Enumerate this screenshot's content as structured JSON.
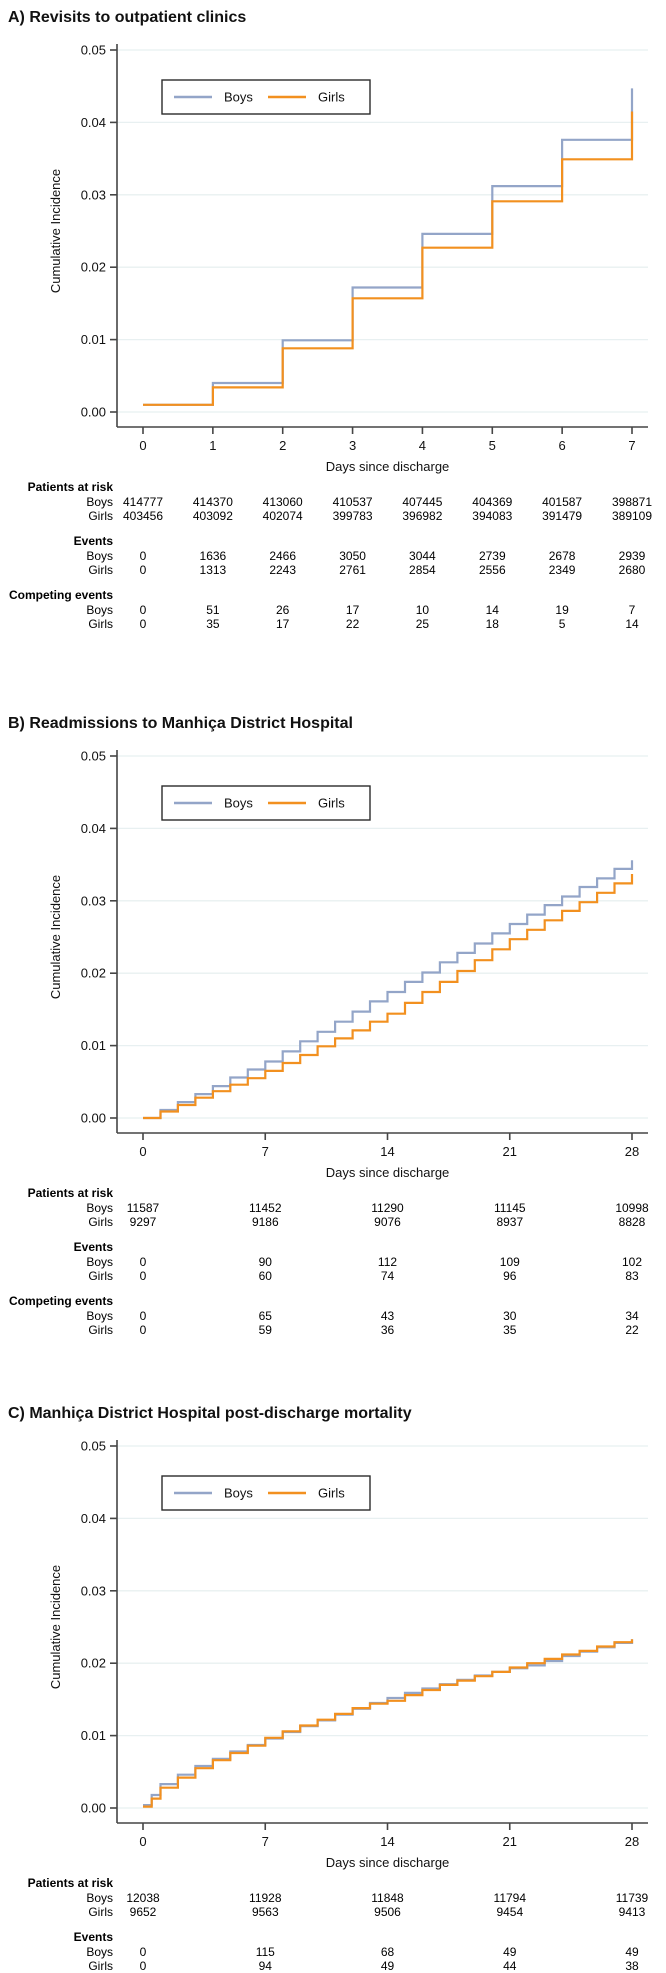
{
  "colors": {
    "boys_line": "#93a5c8",
    "girls_line": "#f2901f",
    "gridline": "#e8f0f1",
    "axis": "#454545",
    "legend_border": "#2b2b2b",
    "text": "#111111"
  },
  "panels": [
    {
      "title": "A) Revisits to outpatient clinics",
      "ylabel": "Cumulative Incidence",
      "xlabel": "Days since discharge",
      "legend": [
        {
          "label": "Boys",
          "color_key": "boys_line"
        },
        {
          "label": "Girls",
          "color_key": "girls_line"
        }
      ],
      "chart_data": {
        "type": "line",
        "step": true,
        "title": "A) Revisits to outpatient clinics",
        "xlabel": "Days since discharge",
        "ylabel": "Cumulative Incidence",
        "xlim": [
          0,
          7
        ],
        "ylim": [
          0,
          0.05
        ],
        "x_ticks": [
          0,
          1,
          2,
          3,
          4,
          5,
          6,
          7
        ],
        "y_ticks": [
          0.0,
          0.01,
          0.02,
          0.03,
          0.04,
          0.05
        ],
        "grid": true,
        "legend_position": "top-left-inside",
        "series": [
          {
            "name": "Boys",
            "x": [
              0,
              1,
              2,
              3,
              4,
              5,
              6,
              7
            ],
            "y": [
              0.001,
              0.004,
              0.0099,
              0.0172,
              0.0246,
              0.0312,
              0.0376,
              0.0447
            ]
          },
          {
            "name": "Girls",
            "x": [
              0,
              1,
              2,
              3,
              4,
              5,
              6,
              7
            ],
            "y": [
              0.001,
              0.0034,
              0.0088,
              0.0157,
              0.0227,
              0.0291,
              0.0349,
              0.0415
            ]
          }
        ]
      },
      "risk_table": {
        "columns": [
          0,
          1,
          2,
          3,
          4,
          5,
          6,
          7
        ],
        "sections": [
          {
            "label": "Patients at risk",
            "rows": [
              {
                "label": "Boys",
                "values": [
                  "414777",
                  "414370",
                  "413060",
                  "410537",
                  "407445",
                  "404369",
                  "401587",
                  "398871"
                ]
              },
              {
                "label": "Girls",
                "values": [
                  "403456",
                  "403092",
                  "402074",
                  "399783",
                  "396982",
                  "394083",
                  "391479",
                  "389109"
                ]
              }
            ]
          },
          {
            "label": "Events",
            "rows": [
              {
                "label": "Boys",
                "values": [
                  "0",
                  "1636",
                  "2466",
                  "3050",
                  "3044",
                  "2739",
                  "2678",
                  "2939"
                ]
              },
              {
                "label": "Girls",
                "values": [
                  "0",
                  "1313",
                  "2243",
                  "2761",
                  "2854",
                  "2556",
                  "2349",
                  "2680"
                ]
              }
            ]
          },
          {
            "label": "Competing events",
            "rows": [
              {
                "label": "Boys",
                "values": [
                  "0",
                  "51",
                  "26",
                  "17",
                  "10",
                  "14",
                  "19",
                  "7"
                ]
              },
              {
                "label": "Girls",
                "values": [
                  "0",
                  "35",
                  "17",
                  "22",
                  "25",
                  "18",
                  "5",
                  "14"
                ]
              }
            ]
          }
        ]
      }
    },
    {
      "title": "B) Readmissions to Manhiça District Hospital",
      "ylabel": "Cumulative Incidence",
      "xlabel": "Days since discharge",
      "legend": [
        {
          "label": "Boys",
          "color_key": "boys_line"
        },
        {
          "label": "Girls",
          "color_key": "girls_line"
        }
      ],
      "chart_data": {
        "type": "line",
        "step": true,
        "title": "B) Readmissions to Manhiça District Hospital",
        "xlabel": "Days since discharge",
        "ylabel": "Cumulative Incidence",
        "xlim": [
          0,
          28
        ],
        "ylim": [
          0,
          0.05
        ],
        "x_ticks": [
          0,
          7,
          14,
          21,
          28
        ],
        "y_ticks": [
          0.0,
          0.01,
          0.02,
          0.03,
          0.04,
          0.05
        ],
        "grid": true,
        "legend_position": "top-left-inside",
        "series": [
          {
            "name": "Boys",
            "x": [
              0,
              1,
              2,
              3,
              4,
              5,
              6,
              7,
              8,
              9,
              10,
              11,
              12,
              13,
              14,
              15,
              16,
              17,
              18,
              19,
              20,
              21,
              22,
              23,
              24,
              25,
              26,
              27,
              28
            ],
            "y": [
              0,
              0.0011,
              0.0022,
              0.0033,
              0.0044,
              0.0056,
              0.0067,
              0.0078,
              0.0092,
              0.0106,
              0.0119,
              0.0133,
              0.0147,
              0.0161,
              0.0174,
              0.0188,
              0.0201,
              0.0215,
              0.0228,
              0.0241,
              0.0255,
              0.0268,
              0.0281,
              0.0294,
              0.0306,
              0.0319,
              0.0331,
              0.0344,
              0.0356
            ]
          },
          {
            "name": "Girls",
            "x": [
              0,
              1,
              2,
              3,
              4,
              5,
              6,
              7,
              8,
              9,
              10,
              11,
              12,
              13,
              14,
              15,
              16,
              17,
              18,
              19,
              20,
              21,
              22,
              23,
              24,
              25,
              26,
              27,
              28
            ],
            "y": [
              0,
              0.0009,
              0.0018,
              0.0028,
              0.0037,
              0.0046,
              0.0055,
              0.0065,
              0.0076,
              0.0087,
              0.0099,
              0.011,
              0.0121,
              0.0133,
              0.0144,
              0.0159,
              0.0174,
              0.0188,
              0.0203,
              0.0218,
              0.0233,
              0.0247,
              0.026,
              0.0273,
              0.0286,
              0.0298,
              0.0311,
              0.0324,
              0.0337
            ]
          }
        ]
      },
      "risk_table": {
        "columns": [
          0,
          7,
          14,
          21,
          28
        ],
        "sections": [
          {
            "label": "Patients at risk",
            "rows": [
              {
                "label": "Boys",
                "values": [
                  "11587",
                  "11452",
                  "11290",
                  "11145",
                  "10998"
                ]
              },
              {
                "label": "Girls",
                "values": [
                  "9297",
                  "9186",
                  "9076",
                  "8937",
                  "8828"
                ]
              }
            ]
          },
          {
            "label": "Events",
            "rows": [
              {
                "label": "Boys",
                "values": [
                  "0",
                  "90",
                  "112",
                  "109",
                  "102"
                ]
              },
              {
                "label": "Girls",
                "values": [
                  "0",
                  "60",
                  "74",
                  "96",
                  "83"
                ]
              }
            ]
          },
          {
            "label": "Competing events",
            "rows": [
              {
                "label": "Boys",
                "values": [
                  "0",
                  "65",
                  "43",
                  "30",
                  "34"
                ]
              },
              {
                "label": "Girls",
                "values": [
                  "0",
                  "59",
                  "36",
                  "35",
                  "22"
                ]
              }
            ]
          }
        ]
      }
    },
    {
      "title": "C) Manhiça District Hospital post-discharge mortality",
      "ylabel": "Cumulative Incidence",
      "xlabel": "Days since discharge",
      "legend": [
        {
          "label": "Boys",
          "color_key": "boys_line"
        },
        {
          "label": "Girls",
          "color_key": "girls_line"
        }
      ],
      "chart_data": {
        "type": "line",
        "step": true,
        "title": "C) Manhiça District Hospital post-discharge mortality",
        "xlabel": "Days since discharge",
        "ylabel": "Cumulative Incidence",
        "xlim": [
          0,
          28
        ],
        "ylim": [
          0,
          0.05
        ],
        "x_ticks": [
          0,
          7,
          14,
          21,
          28
        ],
        "y_ticks": [
          0.0,
          0.01,
          0.02,
          0.03,
          0.04,
          0.05
        ],
        "grid": true,
        "legend_position": "top-left-inside",
        "series": [
          {
            "name": "Boys",
            "x": [
              0,
              0.5,
              1,
              2,
              3,
              4,
              5,
              6,
              7,
              8,
              9,
              10,
              11,
              12,
              13,
              14,
              15,
              16,
              17,
              18,
              19,
              20,
              21,
              22,
              23,
              24,
              25,
              26,
              27,
              28
            ],
            "y": [
              0.0004,
              0.0018,
              0.0033,
              0.0046,
              0.0058,
              0.0068,
              0.0078,
              0.0087,
              0.0096,
              0.0105,
              0.0113,
              0.0121,
              0.0129,
              0.0137,
              0.0145,
              0.0152,
              0.0159,
              0.0165,
              0.0171,
              0.0177,
              0.0183,
              0.0188,
              0.0193,
              0.0197,
              0.0203,
              0.021,
              0.0216,
              0.0222,
              0.0228,
              0.0233
            ]
          },
          {
            "name": "Girls",
            "x": [
              0,
              0.5,
              1,
              2,
              3,
              4,
              5,
              6,
              7,
              8,
              9,
              10,
              11,
              12,
              13,
              14,
              15,
              16,
              17,
              18,
              19,
              20,
              21,
              22,
              23,
              24,
              25,
              26,
              27,
              28
            ],
            "y": [
              0.0002,
              0.0013,
              0.0028,
              0.0042,
              0.0055,
              0.0066,
              0.0076,
              0.0086,
              0.0097,
              0.0106,
              0.0114,
              0.0122,
              0.013,
              0.0138,
              0.0144,
              0.0148,
              0.0156,
              0.0163,
              0.017,
              0.0176,
              0.0182,
              0.0188,
              0.0194,
              0.02,
              0.0206,
              0.0212,
              0.0217,
              0.0223,
              0.0229,
              0.0233
            ]
          }
        ]
      },
      "risk_table": {
        "columns": [
          0,
          7,
          14,
          21,
          28
        ],
        "sections": [
          {
            "label": "Patients at risk",
            "rows": [
              {
                "label": "Boys",
                "values": [
                  "12038",
                  "11928",
                  "11848",
                  "11794",
                  "11739"
                ]
              },
              {
                "label": "Girls",
                "values": [
                  "9652",
                  "9563",
                  "9506",
                  "9454",
                  "9413"
                ]
              }
            ]
          },
          {
            "label": "Events",
            "rows": [
              {
                "label": "Boys",
                "values": [
                  "0",
                  "115",
                  "68",
                  "49",
                  "49"
                ]
              },
              {
                "label": "Girls",
                "values": [
                  "0",
                  "94",
                  "49",
                  "44",
                  "38"
                ]
              }
            ]
          }
        ]
      }
    }
  ]
}
